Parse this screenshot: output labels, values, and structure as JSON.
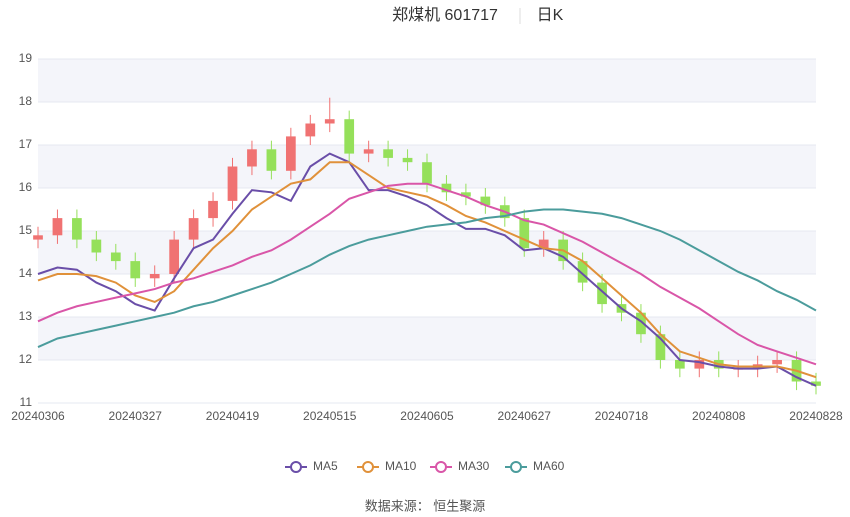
{
  "chart_data": {
    "type": "candlestick",
    "title": "郑煤机 601717",
    "period": "日K",
    "categories": [
      "20240306",
      null,
      null,
      null,
      null,
      "20240327",
      null,
      null,
      null,
      null,
      "20240419",
      null,
      null,
      null,
      null,
      "20240515",
      null,
      null,
      null,
      null,
      "20240605",
      null,
      null,
      null,
      null,
      "20240627",
      null,
      null,
      null,
      null,
      "20240718",
      null,
      null,
      null,
      null,
      "20240808",
      null,
      null,
      null,
      null,
      "20240828"
    ],
    "open": [
      14.8,
      14.9,
      15.3,
      14.8,
      14.5,
      14.3,
      13.9,
      14.0,
      14.8,
      15.3,
      15.7,
      16.5,
      16.9,
      16.4,
      17.2,
      17.5,
      17.6,
      16.8,
      16.9,
      16.7,
      16.6,
      16.1,
      15.9,
      15.8,
      15.6,
      15.3,
      14.6,
      14.8,
      14.3,
      13.8,
      13.3,
      13.1,
      12.6,
      12.0,
      11.8,
      12.0,
      11.8,
      11.8,
      11.9,
      12.0,
      11.5
    ],
    "high": [
      15.1,
      15.5,
      15.5,
      15.0,
      14.7,
      14.5,
      14.2,
      15.0,
      15.5,
      15.9,
      16.7,
      17.1,
      17.1,
      17.4,
      17.7,
      18.1,
      17.8,
      17.1,
      17.1,
      16.9,
      16.8,
      16.3,
      16.1,
      16.0,
      15.8,
      15.5,
      15.0,
      15.0,
      14.5,
      14.0,
      13.5,
      13.3,
      12.8,
      12.2,
      12.2,
      12.2,
      12.0,
      12.1,
      12.2,
      12.2,
      11.7
    ],
    "low": [
      14.6,
      14.7,
      14.6,
      14.3,
      14.1,
      13.7,
      13.7,
      13.8,
      14.6,
      15.1,
      15.5,
      16.3,
      16.2,
      16.2,
      17.0,
      17.3,
      16.6,
      16.6,
      16.5,
      16.4,
      15.9,
      15.7,
      15.6,
      15.4,
      15.1,
      14.4,
      14.4,
      14.1,
      13.6,
      13.1,
      12.9,
      12.4,
      11.8,
      11.6,
      11.6,
      11.6,
      11.6,
      11.6,
      11.7,
      11.3,
      11.2
    ],
    "close": [
      14.9,
      15.3,
      14.8,
      14.5,
      14.3,
      13.9,
      14.0,
      14.8,
      15.3,
      15.7,
      16.5,
      16.9,
      16.4,
      17.2,
      17.5,
      17.6,
      16.8,
      16.9,
      16.7,
      16.6,
      16.1,
      15.9,
      15.8,
      15.6,
      15.3,
      14.6,
      14.8,
      14.3,
      13.8,
      13.3,
      13.1,
      12.6,
      12.0,
      11.8,
      12.0,
      11.8,
      11.8,
      11.9,
      12.0,
      11.5,
      11.4
    ],
    "up_color": "#f07272",
    "down_color": "#95e05a",
    "series": [
      {
        "name": "MA5",
        "color": "#6a4ea8",
        "values": [
          14.0,
          14.15,
          14.1,
          13.8,
          13.6,
          13.3,
          13.15,
          13.9,
          14.6,
          14.8,
          15.4,
          15.95,
          15.9,
          15.7,
          16.5,
          16.8,
          16.6,
          15.95,
          15.95,
          15.8,
          15.6,
          15.3,
          15.05,
          15.05,
          14.9,
          14.55,
          14.6,
          14.4,
          14.0,
          13.6,
          13.2,
          12.9,
          12.5,
          12.0,
          11.95,
          11.85,
          11.8,
          11.8,
          11.85,
          11.6,
          11.4
        ]
      },
      {
        "name": "MA10",
        "color": "#e0913a",
        "values": [
          13.85,
          14.0,
          14.0,
          13.95,
          13.8,
          13.5,
          13.35,
          13.6,
          14.1,
          14.6,
          15.0,
          15.5,
          15.8,
          16.1,
          16.2,
          16.6,
          16.6,
          16.3,
          16.0,
          15.9,
          15.8,
          15.6,
          15.35,
          15.2,
          15.0,
          14.8,
          14.6,
          14.55,
          14.3,
          13.9,
          13.5,
          13.1,
          12.6,
          12.2,
          12.05,
          11.9,
          11.85,
          11.85,
          11.85,
          11.75,
          11.6
        ]
      },
      {
        "name": "MA30",
        "color": "#d956a8",
        "values": [
          12.9,
          13.1,
          13.25,
          13.35,
          13.45,
          13.55,
          13.65,
          13.8,
          13.9,
          14.05,
          14.2,
          14.4,
          14.55,
          14.8,
          15.1,
          15.4,
          15.75,
          15.9,
          16.05,
          16.1,
          16.1,
          15.95,
          15.8,
          15.6,
          15.45,
          15.25,
          15.15,
          14.95,
          14.75,
          14.5,
          14.25,
          14.0,
          13.7,
          13.45,
          13.2,
          12.9,
          12.6,
          12.35,
          12.2,
          12.05,
          11.9
        ]
      },
      {
        "name": "MA60",
        "color": "#4b9c9c",
        "values": [
          12.3,
          12.5,
          12.6,
          12.7,
          12.8,
          12.9,
          13.0,
          13.1,
          13.25,
          13.35,
          13.5,
          13.65,
          13.8,
          14.0,
          14.2,
          14.45,
          14.65,
          14.8,
          14.9,
          15.0,
          15.1,
          15.15,
          15.2,
          15.3,
          15.35,
          15.45,
          15.5,
          15.5,
          15.45,
          15.4,
          15.3,
          15.15,
          15.0,
          14.8,
          14.55,
          14.3,
          14.05,
          13.85,
          13.6,
          13.4,
          13.15
        ]
      }
    ],
    "ylim": [
      11,
      19
    ],
    "yticks": [
      11,
      12,
      13,
      14,
      15,
      16,
      17,
      18,
      19
    ],
    "grid": true,
    "source": "数据来源： 恒生聚源"
  }
}
